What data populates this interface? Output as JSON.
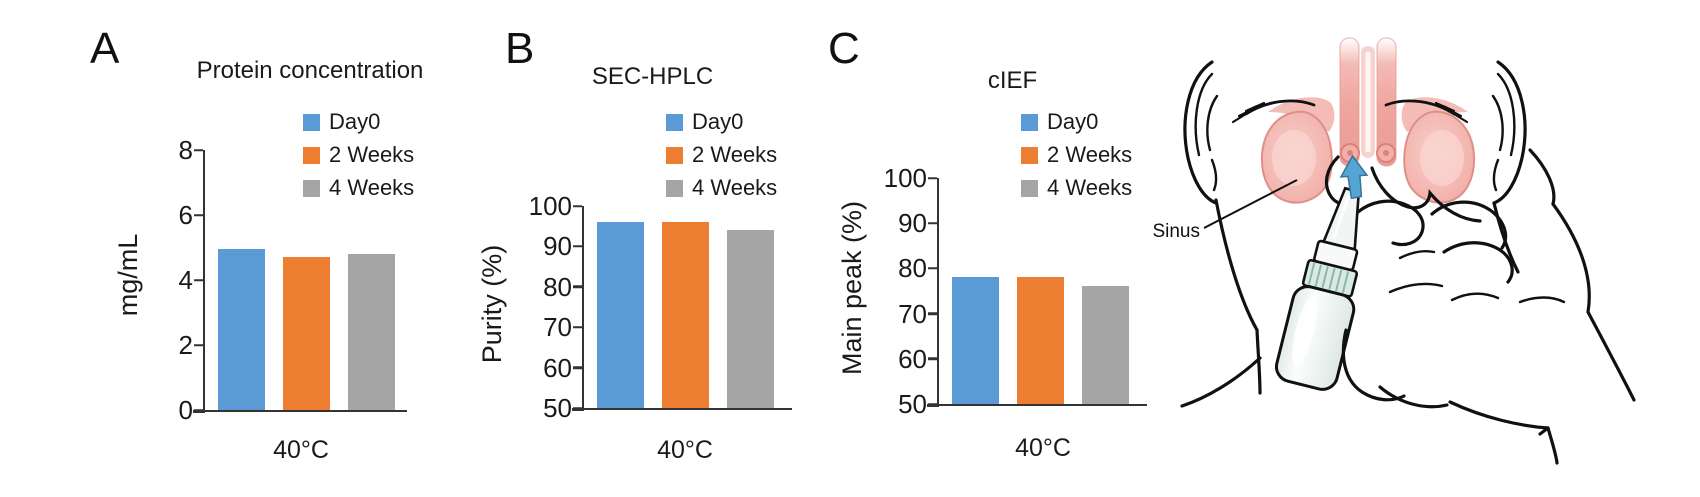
{
  "figure": {
    "panel_labels": [
      "A",
      "B",
      "C"
    ],
    "illustration": {
      "sinus_label": "Sinus"
    },
    "colors": {
      "series": [
        "#5B9BD5",
        "#ED7D31",
        "#A5A5A5"
      ],
      "axis": "#333333",
      "sinus_pink": "#F0A8A1",
      "arrow_blue": "#55A5D3",
      "cap_teal": "#D9EAE5"
    }
  },
  "chart_data": [
    {
      "type": "bar",
      "title": "Protein concentration",
      "categories": [
        "Day0",
        "2 Weeks",
        "4 Weeks"
      ],
      "values": [
        4.95,
        4.7,
        4.8
      ],
      "xlabel": "40°C",
      "ylabel": "mg/mL",
      "ylim": [
        0,
        8
      ],
      "yticks": [
        0,
        2,
        4,
        6,
        8
      ],
      "legend_position": "top-right",
      "grid": false
    },
    {
      "type": "bar",
      "title": "SEC-HPLC",
      "categories": [
        "Day0",
        "2 Weeks",
        "4 Weeks"
      ],
      "values": [
        96,
        96,
        94
      ],
      "xlabel": "40°C",
      "ylabel": "Purity (%)",
      "ylim": [
        50,
        100
      ],
      "yticks": [
        50,
        60,
        70,
        80,
        90,
        100
      ],
      "legend_position": "top-right",
      "grid": false
    },
    {
      "type": "bar",
      "title": "cIEF",
      "categories": [
        "Day0",
        "2 Weeks",
        "4 Weeks"
      ],
      "values": [
        78,
        78,
        76
      ],
      "xlabel": "40°C",
      "ylabel": "Main peak (%)",
      "ylim": [
        50,
        100
      ],
      "yticks": [
        50,
        60,
        70,
        80,
        90,
        100
      ],
      "legend_position": "top-right",
      "grid": false
    }
  ]
}
